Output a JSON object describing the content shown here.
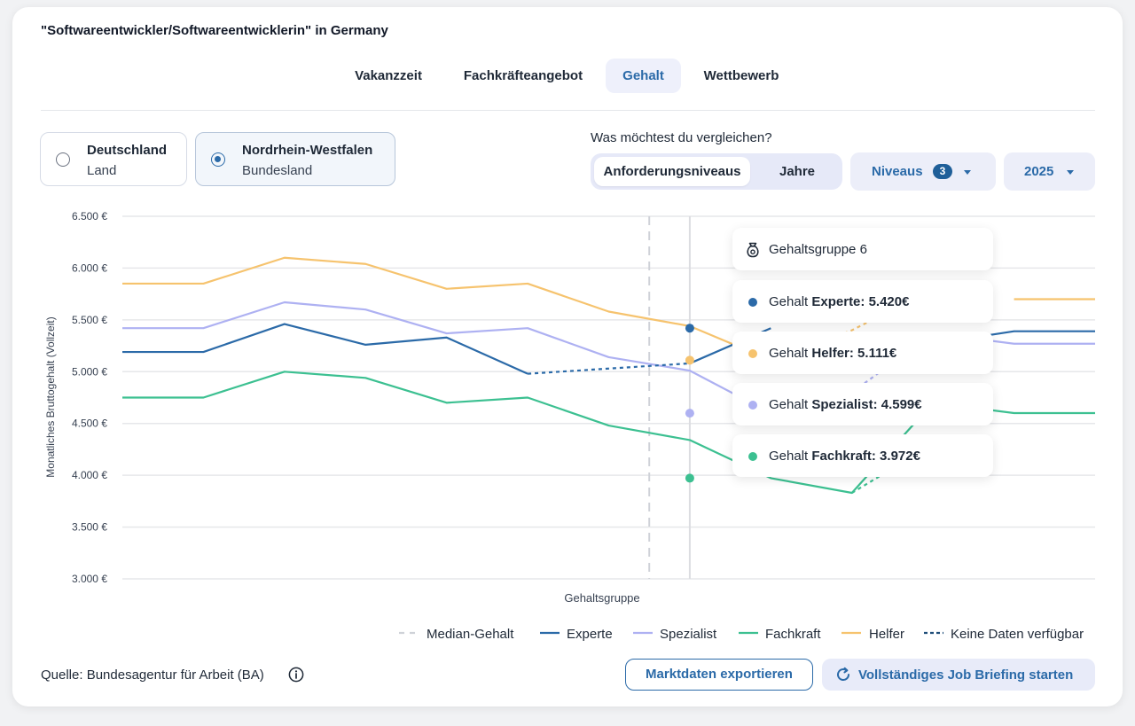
{
  "title": "\"Softwareentwickler/Softwareentwicklerin\" in Germany",
  "tabs": [
    {
      "label": "Vakanzzeit"
    },
    {
      "label": "Fachkräfteangebot"
    },
    {
      "label": "Gehalt"
    },
    {
      "label": "Wettbewerb"
    }
  ],
  "active_tab": "Gehalt",
  "regions": [
    {
      "name": "Deutschland",
      "sub": "Land",
      "selected": false
    },
    {
      "name": "Nordrhein-Westfalen",
      "sub": "Bundesland",
      "selected": true
    }
  ],
  "compare": {
    "label": "Was möchtest du vergleichen?",
    "options": [
      "Anforderungsniveaus",
      "Jahre"
    ],
    "active": "Anforderungsniveaus"
  },
  "niveaus_dropdown": {
    "label": "Niveaus",
    "count": "3"
  },
  "year_dropdown": {
    "label": "2025"
  },
  "colors": {
    "experte": "#2b6aa8",
    "helfer": "#f6c36e",
    "spezialist": "#aeb1f2",
    "fachkraft": "#3cc091",
    "median": "#cfd2d8",
    "accent": "#2b6aa8"
  },
  "icons": {
    "tooltip_header": "money-bag-icon",
    "source_info": "info-icon",
    "briefing_button": "refresh-icon"
  },
  "chart_data": {
    "type": "line",
    "xlabel": "Gehaltsgruppe",
    "ylabel": "Monatliches Bruttogehalt (Vollzeit)",
    "ylim": [
      3000,
      6500
    ],
    "yticks": [
      "6.500 €",
      "6.000 €",
      "5.500 €",
      "5.000 €",
      "4.500 €",
      "4.000 €",
      "3.500 €",
      "3.000 €"
    ],
    "ytick_values": [
      6500,
      6000,
      5500,
      5000,
      4500,
      4000,
      3500,
      3000
    ],
    "x": [
      0,
      1,
      2,
      3,
      4,
      5,
      6,
      7,
      8,
      9,
      10,
      11,
      12
    ],
    "median_x": 6.5,
    "highlight_x": 7,
    "series": [
      {
        "name": "Helfer",
        "key": "helfer",
        "values": [
          5850,
          5850,
          6100,
          6040,
          5800,
          5850,
          5580,
          5440,
          5111,
          null,
          null,
          5700,
          5700
        ],
        "gap": [
          [
            8,
            5111
          ],
          [
            9,
            5400
          ],
          [
            10,
            5800
          ]
        ]
      },
      {
        "name": "Spezialist",
        "key": "spezialist",
        "values": [
          5420,
          5420,
          5670,
          5600,
          5370,
          5420,
          5140,
          5010,
          4599,
          null,
          5370,
          5270,
          5270
        ],
        "gap": [
          [
            8,
            4599
          ],
          [
            9,
            4800
          ],
          [
            10,
            5370
          ]
        ]
      },
      {
        "name": "Experte",
        "key": "experte",
        "values": [
          5190,
          5190,
          5460,
          5260,
          5330,
          4980,
          null,
          5080,
          5420,
          null,
          5270,
          5390,
          5390
        ],
        "gap": [
          [
            5,
            4980
          ],
          [
            7,
            5080
          ]
        ]
      },
      {
        "name": "Fachkraft",
        "key": "fachkraft",
        "values": [
          4750,
          4750,
          5000,
          4940,
          4700,
          4750,
          4480,
          4340,
          3972,
          3830,
          4700,
          4600,
          4600
        ],
        "gap": [
          [
            9,
            3830
          ],
          [
            10,
            4300
          ]
        ]
      }
    ],
    "legend": [
      {
        "label": "Median-Gehalt",
        "key": "median",
        "style": "dashed"
      },
      {
        "label": "Experte",
        "key": "experte",
        "style": "solid"
      },
      {
        "label": "Spezialist",
        "key": "spezialist",
        "style": "solid"
      },
      {
        "label": "Fachkraft",
        "key": "fachkraft",
        "style": "solid"
      },
      {
        "label": "Helfer",
        "key": "helfer",
        "style": "solid"
      },
      {
        "label": "Keine Daten verfügbar",
        "key": "nodata",
        "style": "dotted"
      }
    ]
  },
  "tooltip": {
    "header": "Gehaltsgruppe 6",
    "items": [
      {
        "key": "experte",
        "prefix": "Gehalt ",
        "label": "Experte: 5.420€",
        "value": 5420
      },
      {
        "key": "helfer",
        "prefix": "Gehalt ",
        "label": "Helfer: 5.111€",
        "value": 5111
      },
      {
        "key": "spezialist",
        "prefix": "Gehalt ",
        "label": "Spezialist: 4.599€",
        "value": 4599
      },
      {
        "key": "fachkraft",
        "prefix": "Gehalt ",
        "label": "Fachkraft: 3.972€",
        "value": 3972
      }
    ]
  },
  "footer": {
    "source": "Quelle: Bundesagentur für Arbeit (BA)",
    "export_button": "Marktdaten exportieren",
    "briefing_button": "Vollständiges Job Briefing starten"
  }
}
